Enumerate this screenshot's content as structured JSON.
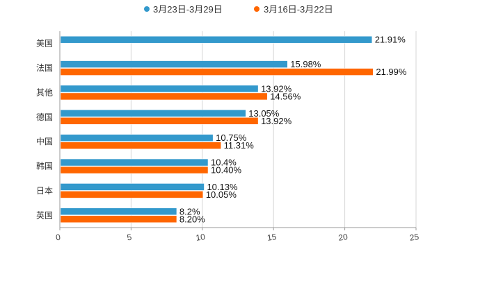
{
  "chart_data": {
    "type": "bar",
    "orientation": "horizontal",
    "categories": [
      "美国",
      "法国",
      "其他",
      "德国",
      "中国",
      "韩国",
      "日本",
      "英国"
    ],
    "series": [
      {
        "name": "3月23日-3月29日",
        "color": "#3399cc",
        "values": [
          21.91,
          15.98,
          13.92,
          13.05,
          10.75,
          10.4,
          10.13,
          8.2
        ],
        "labels": [
          "21.91%",
          "15.98%",
          "13.92%",
          "13.05%",
          "10.75%",
          "10.4%",
          "10.13%",
          "8.2%"
        ]
      },
      {
        "name": "3月16日-3月22日",
        "color": "#ff6600",
        "values": [
          null,
          21.99,
          14.56,
          13.92,
          11.31,
          10.4,
          10.05,
          8.2
        ],
        "labels": [
          "",
          "21.99%",
          "14.56%",
          "13.92%",
          "11.31%",
          "10.40%",
          "10.05%",
          "8.20%"
        ]
      }
    ],
    "xlim": [
      0,
      25
    ],
    "xticks": [
      "0",
      "5",
      "10",
      "15",
      "20",
      "25"
    ],
    "grid": true,
    "legend": "top-center",
    "title": "",
    "xlabel": "",
    "ylabel": ""
  }
}
